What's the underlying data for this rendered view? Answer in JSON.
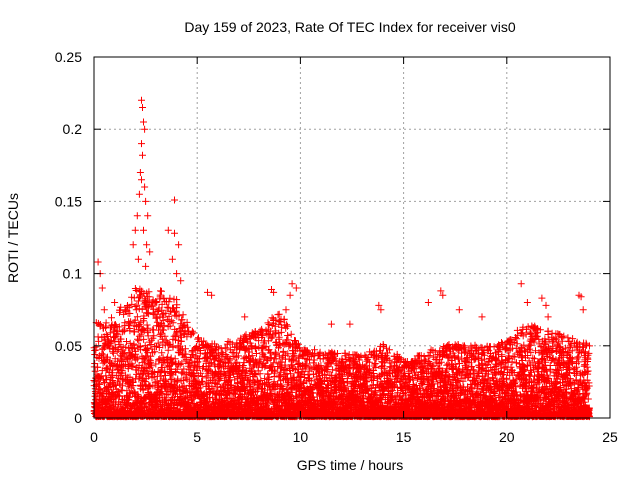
{
  "chart_data": {
    "type": "scatter",
    "title": "Day 159 of 2023, Rate Of TEC Index for receiver vis0",
    "xlabel": "GPS time / hours",
    "ylabel": "ROTI / TECUs",
    "xlim": [
      0,
      25
    ],
    "ylim": [
      0,
      0.25
    ],
    "xticks": [
      0,
      5,
      10,
      15,
      20,
      25
    ],
    "xtick_labels": [
      "0",
      "5",
      "10",
      "15",
      "20",
      "25"
    ],
    "yticks": [
      0,
      0.05,
      0.1,
      0.15,
      0.2,
      0.25
    ],
    "ytick_labels": [
      "0",
      "0.05",
      "0.1",
      "0.15",
      "0.2",
      "0.25"
    ],
    "grid": true,
    "marker": "+",
    "series_color": "#ff0000",
    "bulk_hourly_max": [
      0.065,
      0.07,
      0.09,
      0.09,
      0.08,
      0.055,
      0.05,
      0.055,
      0.06,
      0.075,
      0.05,
      0.045,
      0.045,
      0.042,
      0.05,
      0.04,
      0.045,
      0.05,
      0.05,
      0.05,
      0.055,
      0.065,
      0.06,
      0.055,
      0.05
    ],
    "peaks": [
      [
        0.2,
        0.108
      ],
      [
        0.3,
        0.1
      ],
      [
        0.4,
        0.09
      ],
      [
        0.5,
        0.075
      ],
      [
        1.0,
        0.08
      ],
      [
        1.5,
        0.075
      ],
      [
        2.3,
        0.22
      ],
      [
        2.35,
        0.215
      ],
      [
        2.4,
        0.205
      ],
      [
        2.45,
        0.2
      ],
      [
        2.3,
        0.19
      ],
      [
        2.35,
        0.182
      ],
      [
        2.25,
        0.17
      ],
      [
        2.3,
        0.165
      ],
      [
        2.2,
        0.155
      ],
      [
        2.45,
        0.16
      ],
      [
        2.1,
        0.14
      ],
      [
        2.0,
        0.13
      ],
      [
        1.9,
        0.12
      ],
      [
        2.5,
        0.15
      ],
      [
        2.6,
        0.14
      ],
      [
        2.4,
        0.13
      ],
      [
        2.55,
        0.12
      ],
      [
        2.15,
        0.11
      ],
      [
        2.7,
        0.115
      ],
      [
        2.5,
        0.105
      ],
      [
        3.0,
        0.08
      ],
      [
        3.2,
        0.07
      ],
      [
        3.9,
        0.151
      ],
      [
        3.6,
        0.13
      ],
      [
        3.9,
        0.128
      ],
      [
        4.1,
        0.12
      ],
      [
        3.8,
        0.11
      ],
      [
        4.0,
        0.1
      ],
      [
        4.2,
        0.095
      ],
      [
        4.0,
        0.082
      ],
      [
        5.5,
        0.087
      ],
      [
        5.7,
        0.085
      ],
      [
        7.3,
        0.07
      ],
      [
        8.6,
        0.089
      ],
      [
        8.7,
        0.087
      ],
      [
        9.6,
        0.093
      ],
      [
        9.8,
        0.09
      ],
      [
        9.5,
        0.085
      ],
      [
        9.3,
        0.075
      ],
      [
        11.5,
        0.065
      ],
      [
        12.4,
        0.065
      ],
      [
        13.8,
        0.078
      ],
      [
        13.9,
        0.075
      ],
      [
        16.2,
        0.08
      ],
      [
        16.8,
        0.088
      ],
      [
        16.9,
        0.085
      ],
      [
        17.7,
        0.075
      ],
      [
        18.8,
        0.07
      ],
      [
        20.7,
        0.093
      ],
      [
        21.0,
        0.08
      ],
      [
        21.7,
        0.083
      ],
      [
        21.9,
        0.078
      ],
      [
        22.0,
        0.07
      ],
      [
        23.5,
        0.085
      ],
      [
        23.6,
        0.084
      ],
      [
        23.7,
        0.075
      ]
    ]
  }
}
